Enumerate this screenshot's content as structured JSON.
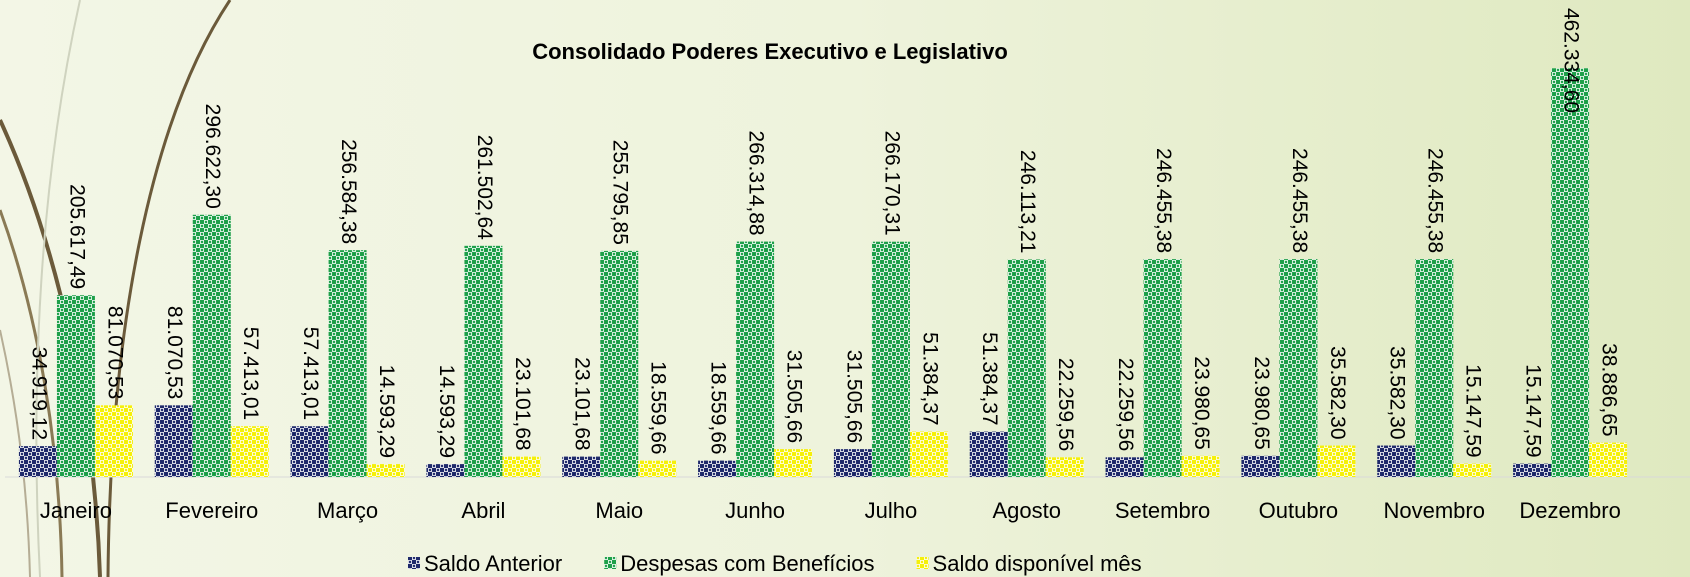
{
  "chart_data": {
    "type": "bar",
    "title": "Consolidado Poderes Executivo e Legislativo",
    "categories": [
      "Janeiro",
      "Fevereiro",
      "Março",
      "Abril",
      "Maio",
      "Junho",
      "Julho",
      "Agosto",
      "Setembro",
      "Outubro",
      "Novembro",
      "Dezembro"
    ],
    "series": [
      {
        "name": "Saldo Anterior",
        "color": "#1f2a6b",
        "values": [
          34919.12,
          81070.53,
          57413.01,
          14593.29,
          23101.68,
          18559.66,
          31505.66,
          51384.37,
          22259.56,
          23980.65,
          35582.3,
          15147.59
        ],
        "value_labels": [
          "34.919,12",
          "81.070,53",
          "57.413,01",
          "14.593,29",
          "23.101,68",
          "18.559,66",
          "31.505,66",
          "51.384,37",
          "22.259,56",
          "23.980,65",
          "35.582,30",
          "15.147,59"
        ]
      },
      {
        "name": "Despesas com Benefícios",
        "color": "#1ea04a",
        "values": [
          205617.49,
          296622.3,
          256584.38,
          261502.64,
          255795.85,
          266314.88,
          266170.31,
          246113.21,
          246455.38,
          246455.38,
          246455.38,
          462334.6
        ],
        "value_labels": [
          "205.617,49",
          "296.622,30",
          "256.584,38",
          "261.502,64",
          "255.795,85",
          "266.314,88",
          "266.170,31",
          "246.113,21",
          "246.455,38",
          "246.455,38",
          "246.455,38",
          "462.334,60"
        ]
      },
      {
        "name": "Saldo disponível mês",
        "color": "#f5f00a",
        "values": [
          81070.53,
          57413.01,
          14593.29,
          23101.68,
          18559.66,
          31505.66,
          51384.37,
          22259.56,
          23980.65,
          35582.3,
          15147.59,
          38886.65
        ],
        "value_labels": [
          "81.070,53",
          "57.413,01",
          "14.593,29",
          "23.101,68",
          "18.559,66",
          "31.505,66",
          "51.384,37",
          "22.259,56",
          "23.980,65",
          "35.582,30",
          "15.147,59",
          "38.886,65"
        ]
      }
    ],
    "ylim": [
      0,
      500000
    ]
  }
}
